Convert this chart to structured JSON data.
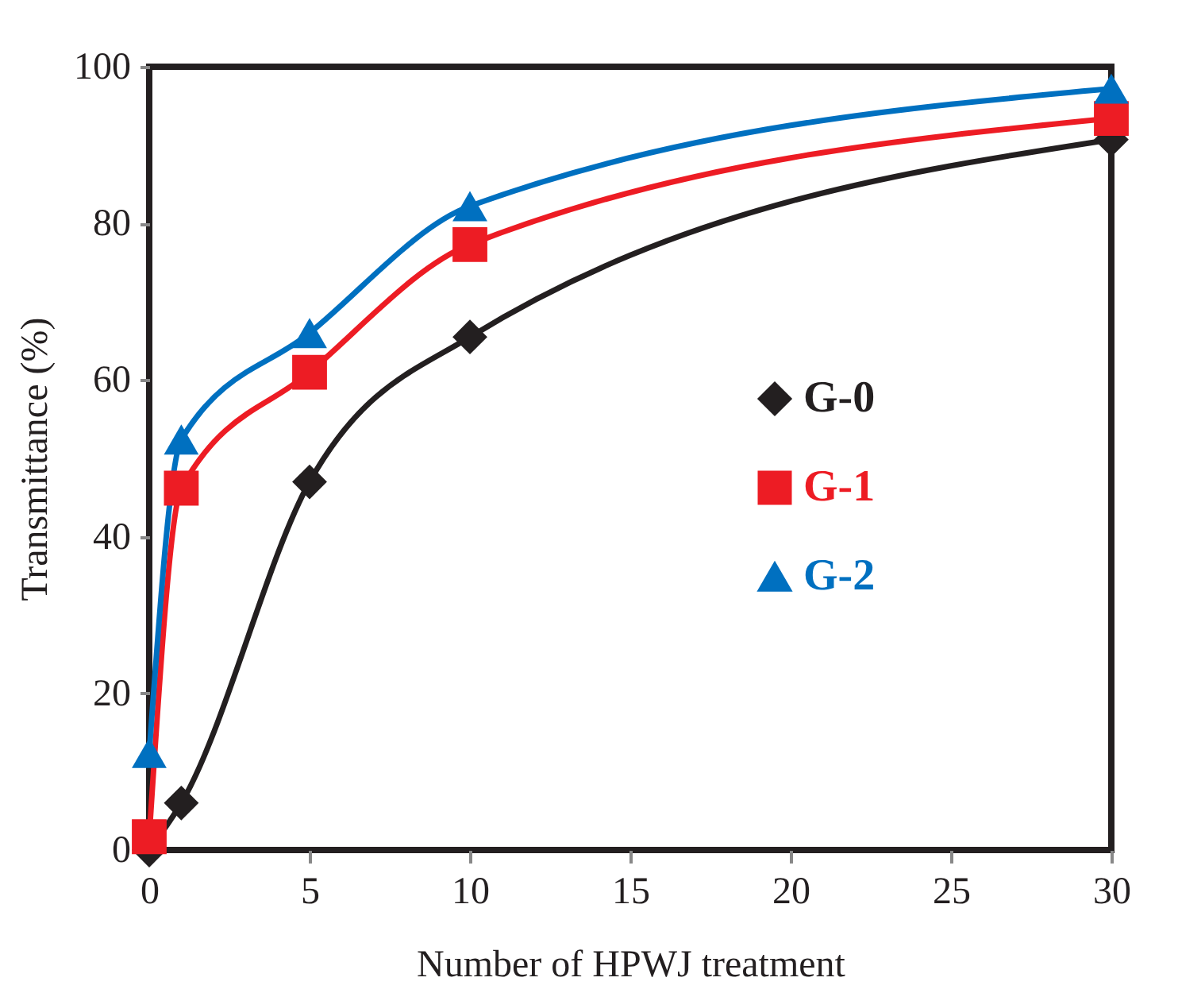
{
  "chart_data": {
    "type": "line",
    "xlabel": "Number of HPWJ treatment",
    "ylabel": "Transmittance (%)",
    "x": [
      0,
      1,
      5,
      10,
      30
    ],
    "series": [
      {
        "name": "G-0",
        "color": "#231f20",
        "marker": "diamond",
        "values": [
          0,
          6,
          47,
          65.5,
          90.7
        ]
      },
      {
        "name": "G-1",
        "color": "#ed1c24",
        "marker": "square",
        "values": [
          1.7,
          46.2,
          61,
          77.3,
          93.4
        ]
      },
      {
        "name": "G-2",
        "color": "#0070c0",
        "marker": "triangle",
        "values": [
          12.4,
          52.4,
          66,
          82.2,
          97.2
        ]
      }
    ],
    "xlim": [
      0,
      30
    ],
    "xticks": [
      0,
      5,
      10,
      15,
      20,
      25,
      30
    ],
    "ylim": [
      0,
      100
    ],
    "yticks": [
      0,
      20,
      40,
      60,
      80,
      100
    ],
    "grid": false,
    "legend": "right",
    "line_style": "solid"
  }
}
